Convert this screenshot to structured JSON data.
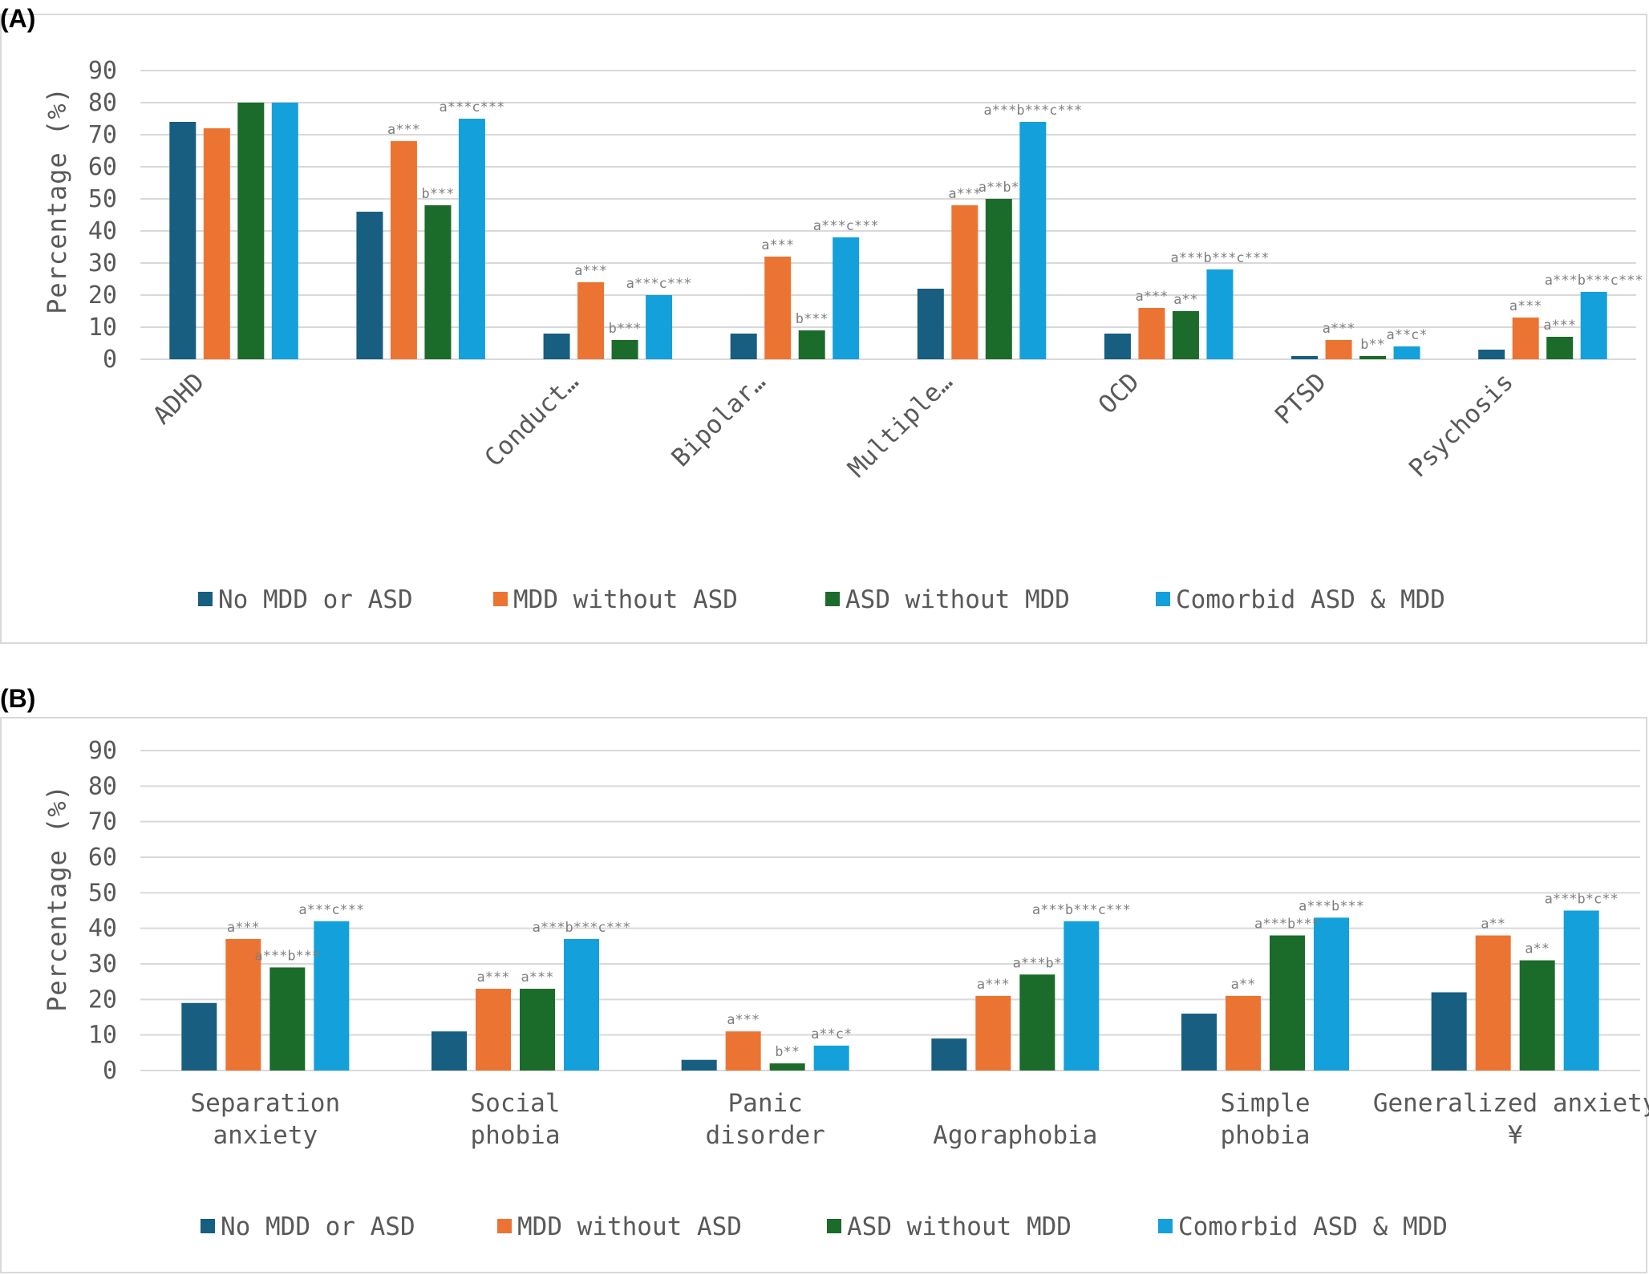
{
  "legend": [
    "No MDD or ASD",
    "MDD without ASD",
    "ASD without MDD",
    "Comorbid ASD & MDD"
  ],
  "colors": [
    "#175e80",
    "#ec7433",
    "#1b6b2a",
    "#14a0da"
  ],
  "chart_data": [
    {
      "type": "bar",
      "panel_label": "(A)",
      "ylabel": "Percentage (%)",
      "ylim": [
        0,
        90
      ],
      "yticks": [
        0,
        10,
        20,
        30,
        40,
        50,
        60,
        70,
        80,
        90
      ],
      "grid": true,
      "legend_position": "bottom",
      "categories": [
        "ADHD",
        "",
        "Conduct…",
        "Bipolar…",
        "Multiple…",
        "OCD",
        "PTSD",
        "Psychosis"
      ],
      "series": [
        {
          "name": "No MDD or ASD",
          "values": [
            74,
            46,
            8,
            8,
            22,
            8,
            1,
            3
          ]
        },
        {
          "name": "MDD without ASD",
          "values": [
            72,
            68,
            24,
            32,
            48,
            16,
            6,
            13
          ]
        },
        {
          "name": "ASD without MDD",
          "values": [
            80,
            48,
            6,
            9,
            50,
            15,
            1,
            7
          ]
        },
        {
          "name": "Comorbid ASD & MDD",
          "values": [
            80,
            75,
            20,
            38,
            74,
            28,
            4,
            21
          ]
        }
      ],
      "annotations": [
        [
          "",
          "",
          "",
          ""
        ],
        [
          "",
          "a***",
          "b***",
          "a***c***"
        ],
        [
          "",
          "a***",
          "b***",
          "a***c***"
        ],
        [
          "",
          "a***",
          "b***",
          "a***c***"
        ],
        [
          "",
          "a***",
          "a**b*",
          "a***b***c***"
        ],
        [
          "",
          "a***",
          "a**",
          "a***b***c***"
        ],
        [
          "",
          "a***",
          "b**",
          "a**c*"
        ],
        [
          "",
          "a***",
          "a***",
          "a***b***c***"
        ]
      ]
    },
    {
      "type": "bar",
      "panel_label": "(B)",
      "ylabel": "Percentage (%)",
      "ylim": [
        0,
        90
      ],
      "yticks": [
        0,
        10,
        20,
        30,
        40,
        50,
        60,
        70,
        80,
        90
      ],
      "grid": true,
      "legend_position": "bottom",
      "categories": [
        "Separation anxiety",
        "Social phobia",
        "Panic disorder",
        "Agoraphobia",
        "Simple phobia",
        "Generalized anxiety ¥"
      ],
      "series": [
        {
          "name": "No MDD or ASD",
          "values": [
            19,
            11,
            3,
            9,
            16,
            22
          ]
        },
        {
          "name": "MDD without ASD",
          "values": [
            37,
            23,
            11,
            21,
            21,
            38
          ]
        },
        {
          "name": "ASD without MDD",
          "values": [
            29,
            23,
            2,
            27,
            38,
            31
          ]
        },
        {
          "name": "Comorbid ASD & MDD",
          "values": [
            42,
            37,
            7,
            42,
            43,
            45
          ]
        }
      ],
      "annotations": [
        [
          "",
          "a***",
          "a***b***",
          "a***c***"
        ],
        [
          "",
          "a***",
          "a***",
          "a***b***c***"
        ],
        [
          "",
          "a***",
          "b**",
          "a**c*"
        ],
        [
          "",
          "a***",
          "a***b*",
          "a***b***c***"
        ],
        [
          "",
          "a**",
          "a***b***",
          "a***b***"
        ],
        [
          "",
          "a**",
          "a**",
          "a***b*c**"
        ]
      ]
    }
  ]
}
